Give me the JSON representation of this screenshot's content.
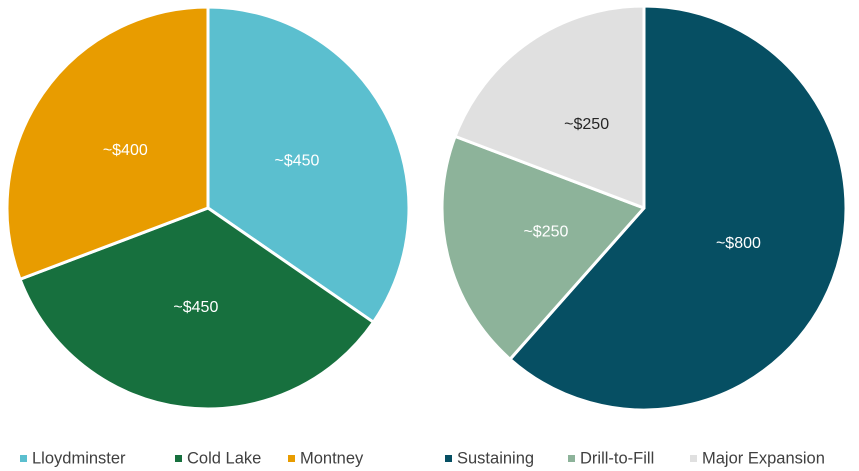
{
  "chart_data": [
    {
      "type": "pie",
      "categories": [
        "Lloydminster",
        "Cold Lake",
        "Montney"
      ],
      "values": [
        450,
        450,
        400
      ],
      "value_labels": [
        "~$450",
        "~$450",
        "~$400"
      ],
      "colors": [
        "#5bbfcf",
        "#17703e",
        "#e89c00"
      ]
    },
    {
      "type": "pie",
      "categories": [
        "Sustaining",
        "Drill-to-Fill",
        "Major Expansion"
      ],
      "values": [
        800,
        250,
        250
      ],
      "value_labels": [
        "~$800",
        "~$250",
        "~$250"
      ],
      "colors": [
        "#064f63",
        "#8db39a",
        "#e0e0e0"
      ]
    }
  ]
}
